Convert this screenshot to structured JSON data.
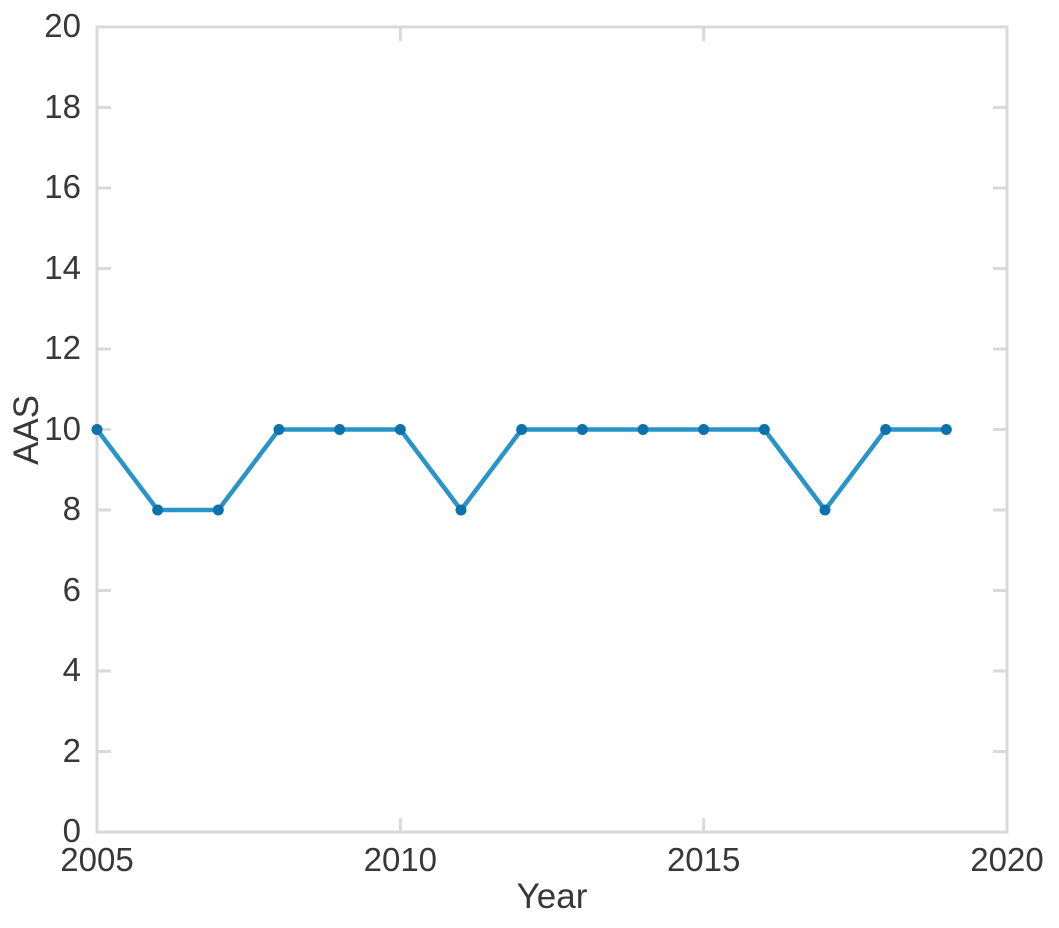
{
  "chart_data": {
    "type": "line",
    "xlabel": "Year",
    "ylabel": "AAS",
    "x": [
      2005,
      2006,
      2007,
      2008,
      2009,
      2010,
      2011,
      2012,
      2013,
      2014,
      2015,
      2016,
      2017,
      2018,
      2019
    ],
    "series": [
      {
        "name": "AAS",
        "values": [
          10,
          8,
          8,
          10,
          10,
          10,
          8,
          10,
          10,
          10,
          10,
          10,
          8,
          10,
          10
        ]
      }
    ],
    "xlim": [
      2005,
      2020
    ],
    "ylim": [
      0,
      20
    ],
    "xticks": [
      2005,
      2010,
      2015,
      2020
    ],
    "yticks": [
      0,
      2,
      4,
      6,
      8,
      10,
      12,
      14,
      16,
      18,
      20
    ],
    "grid": false,
    "legend_position": "none",
    "line_color": "#2a93c8",
    "marker_color": "#0d72ab",
    "axis_color": "#d9d9d9",
    "tick_label_color": "#383838"
  }
}
